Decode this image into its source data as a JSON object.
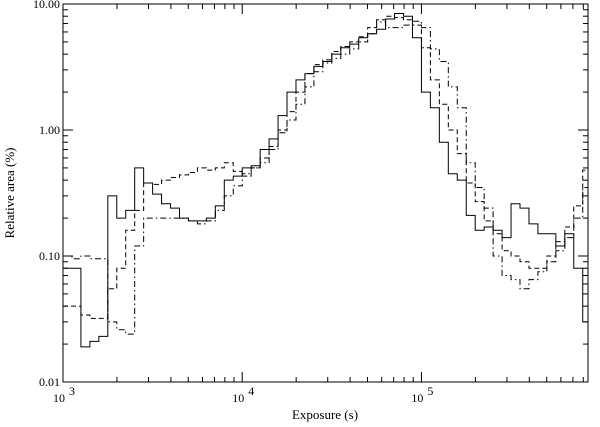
{
  "chart_data": {
    "type": "line",
    "xlabel": "Exposure (s)",
    "ylabel": "Relative area (%)",
    "xscale": "log",
    "yscale": "log",
    "xlim": [
      1000,
      850000
    ],
    "ylim": [
      0.01,
      10
    ],
    "xticks": [
      {
        "value": 1000,
        "base": "10",
        "exp": "3"
      },
      {
        "value": 10000,
        "base": "10",
        "exp": "4"
      },
      {
        "value": 100000,
        "base": "10",
        "exp": "5"
      }
    ],
    "yticks": [
      {
        "value": 0.01,
        "label": "0.01"
      },
      {
        "value": 0.1,
        "label": "0.10"
      },
      {
        "value": 1,
        "label": "1.00"
      },
      {
        "value": 10,
        "label": "10.00"
      }
    ],
    "grid": false,
    "bin_width_dex": 0.05,
    "series": [
      {
        "style": "solid",
        "x0": 1000,
        "values": [
          0.08,
          0.08,
          0.019,
          0.021,
          0.023,
          0.3,
          0.2,
          0.23,
          0.5,
          0.38,
          0.31,
          0.26,
          0.24,
          0.2,
          0.19,
          0.19,
          0.2,
          0.25,
          0.4,
          0.43,
          0.5,
          0.52,
          0.7,
          0.85,
          1.3,
          2.0,
          2.5,
          2.8,
          3.2,
          3.5,
          4.0,
          4.5,
          4.8,
          5.4,
          5.8,
          6.3,
          7.6,
          8.4,
          8.0,
          5.4,
          2.0,
          1.5,
          0.8,
          0.45,
          0.4,
          0.21,
          0.16,
          0.17,
          0.16,
          0.14,
          0.26,
          0.24,
          0.18,
          0.15,
          0.15,
          0.12,
          0.15,
          0.08,
          0.03,
          0.02,
          0.02,
          0.018,
          0.04,
          0.03,
          0.01
        ]
      },
      {
        "style": "dashed",
        "x0": 1000,
        "values": [
          0.04,
          0.04,
          0.034,
          0.032,
          0.032,
          0.055,
          0.08,
          0.16,
          0.23,
          0.38,
          0.37,
          0.4,
          0.42,
          0.44,
          0.46,
          0.5,
          0.48,
          0.5,
          0.55,
          0.47,
          0.43,
          0.5,
          0.6,
          0.74,
          1.0,
          1.4,
          2.0,
          2.8,
          3.3,
          3.6,
          4.2,
          4.6,
          5.0,
          5.5,
          6.5,
          7.5,
          8.0,
          7.8,
          7.5,
          6.8,
          4.5,
          2.5,
          1.6,
          1.0,
          0.65,
          0.38,
          0.27,
          0.19,
          0.15,
          0.11,
          0.1,
          0.09,
          0.08,
          0.08,
          0.1,
          0.13,
          0.17,
          0.25,
          0.48,
          0.38,
          0.19,
          0.06,
          0.025,
          0.04,
          0.055
        ]
      },
      {
        "style": "dashdot",
        "x0": 1000,
        "values": [
          0.1,
          0.095,
          0.1,
          0.095,
          0.095,
          0.03,
          0.026,
          0.024,
          0.12,
          0.2,
          0.2,
          0.2,
          0.2,
          0.2,
          0.19,
          0.18,
          0.19,
          0.23,
          0.3,
          0.36,
          0.45,
          0.5,
          0.55,
          0.7,
          0.95,
          1.2,
          1.6,
          2.2,
          2.9,
          3.4,
          3.7,
          4.0,
          4.4,
          5.0,
          5.8,
          7.2,
          6.5,
          6.5,
          6.8,
          7.3,
          6.5,
          4.4,
          3.5,
          2.2,
          1.5,
          0.55,
          0.35,
          0.24,
          0.1,
          0.07,
          0.065,
          0.055,
          0.065,
          0.075,
          0.09,
          0.11,
          0.14,
          0.2,
          0.35,
          0.4,
          0.35,
          0.2,
          0.07,
          0.05,
          0.032,
          0.022,
          0.02
        ]
      }
    ]
  }
}
